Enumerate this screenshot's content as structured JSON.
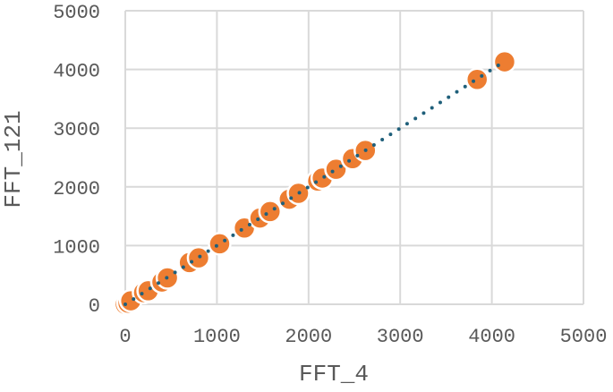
{
  "chart_data": {
    "type": "scatter",
    "title": "",
    "xlabel": "FFT_4",
    "ylabel": "FFT_121",
    "xlim": [
      0,
      5000
    ],
    "ylim": [
      0,
      5000
    ],
    "xticks": [
      0,
      1000,
      2000,
      3000,
      4000,
      5000
    ],
    "yticks": [
      0,
      1000,
      2000,
      3000,
      4000,
      5000
    ],
    "xtick_labels": [
      "0",
      "1000",
      "2000",
      "3000",
      "4000",
      "5000"
    ],
    "ytick_labels": [
      "0",
      "1000",
      "2000",
      "3000",
      "4000",
      "5000"
    ],
    "grid": true,
    "trendline": {
      "style": "dotted",
      "type": "linear",
      "from": [
        0,
        0
      ],
      "to": [
        4150,
        4150
      ],
      "color": "#1f5f7a"
    },
    "marker_color": "#ed7d31",
    "points": [
      {
        "x": 0,
        "y": 0
      },
      {
        "x": 30,
        "y": 20
      },
      {
        "x": 60,
        "y": 60
      },
      {
        "x": 200,
        "y": 200
      },
      {
        "x": 250,
        "y": 230
      },
      {
        "x": 400,
        "y": 380
      },
      {
        "x": 460,
        "y": 450
      },
      {
        "x": 700,
        "y": 710
      },
      {
        "x": 800,
        "y": 790
      },
      {
        "x": 1030,
        "y": 1030
      },
      {
        "x": 1300,
        "y": 1300
      },
      {
        "x": 1470,
        "y": 1470
      },
      {
        "x": 1580,
        "y": 1580
      },
      {
        "x": 1790,
        "y": 1790
      },
      {
        "x": 1890,
        "y": 1890
      },
      {
        "x": 2100,
        "y": 2100
      },
      {
        "x": 2150,
        "y": 2150
      },
      {
        "x": 2300,
        "y": 2300
      },
      {
        "x": 2480,
        "y": 2480
      },
      {
        "x": 2620,
        "y": 2620
      },
      {
        "x": 3840,
        "y": 3830
      },
      {
        "x": 4140,
        "y": 4130
      }
    ]
  }
}
